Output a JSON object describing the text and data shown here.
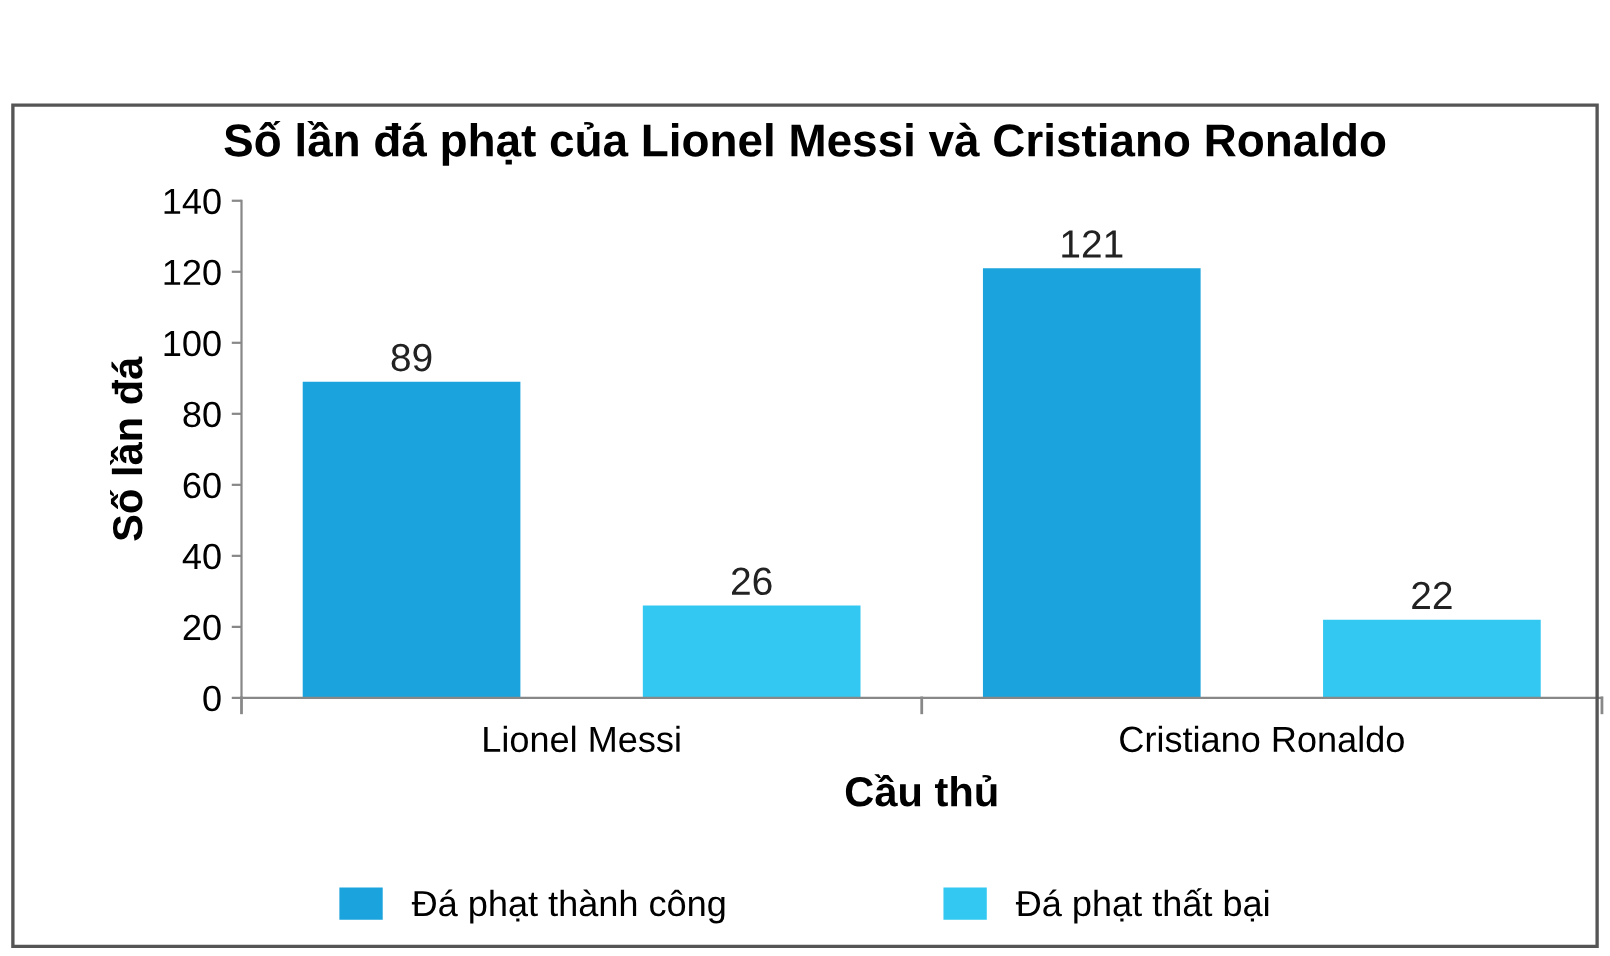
{
  "chart_data": {
    "type": "bar",
    "title": "Số lần đá phạt của Lionel Messi và Cristiano Ronaldo",
    "xlabel": "Cầu thủ",
    "ylabel": "Số lần đá",
    "categories": [
      "Lionel Messi",
      "Cristiano Ronaldo"
    ],
    "series": [
      {
        "name": "Đá phạt thành công",
        "color": "#1aa3dc",
        "values": [
          89,
          121
        ]
      },
      {
        "name": "Đá phạt thất bại",
        "color": "#33c8f2",
        "values": [
          26,
          22
        ]
      }
    ],
    "ylim": [
      0,
      140
    ],
    "yticks": [
      0,
      20,
      40,
      60,
      80,
      100,
      120,
      140
    ],
    "data_labels": true,
    "legend": "bottom",
    "grid": false
  }
}
